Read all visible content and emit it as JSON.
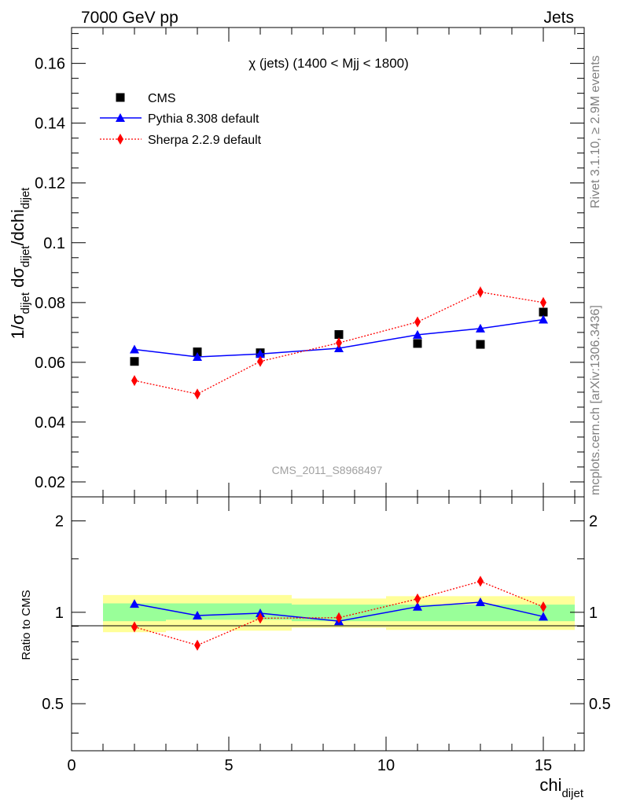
{
  "header": {
    "left": "7000 GeV pp",
    "right": "Jets"
  },
  "side_labels": {
    "top": "Rivet 3.1.10, ≥ 2.9M events",
    "bottom": "mcplots.cern.ch [arXiv:1306.3436]"
  },
  "watermark": "CMS_2011_S8968497",
  "chart_data": [
    {
      "type": "scatter",
      "title": "χ (jets) (1400 < Mjj < 1800)",
      "ylabel": "1/σdijet dσdijet/dchidijet",
      "ylabel_parts": [
        "1/σ",
        "dijet",
        " dσ",
        "dijet",
        "/dchi",
        "dijet"
      ],
      "xlim": [
        0,
        16.3
      ],
      "ylim": [
        0.015,
        0.172
      ],
      "yticks": [
        "0.02",
        "0.04",
        "0.06",
        "0.08",
        "0.1",
        "0.12",
        "0.14",
        "0.16"
      ],
      "yticks_values": [
        0.02,
        0.04,
        0.06,
        0.08,
        0.1,
        0.12,
        0.14,
        0.16
      ],
      "legend": {
        "placement": "top-left"
      },
      "series": [
        {
          "name": "CMS",
          "marker": "square",
          "color": "#000000",
          "x": [
            2,
            4,
            6,
            8.5,
            11,
            13,
            15
          ],
          "y": [
            0.0603,
            0.0635,
            0.0632,
            0.0693,
            0.0663,
            0.066,
            0.0768
          ]
        },
        {
          "name": "Pythia 8.308 default",
          "marker": "triangle",
          "color": "#0000ff",
          "line": "solid",
          "x": [
            2,
            4,
            6,
            8.5,
            11,
            13,
            15
          ],
          "y": [
            0.0643,
            0.0618,
            0.0628,
            0.0647,
            0.0692,
            0.0713,
            0.0743
          ],
          "err": [
            0.0006,
            0.0006,
            0.0006,
            0.0006,
            0.0009,
            0.001,
            0.001
          ]
        },
        {
          "name": "Sherpa 2.2.9 default",
          "marker": "diamond",
          "color": "#ff0000",
          "line": "dotted",
          "x": [
            2,
            4,
            6,
            8.5,
            11,
            13,
            15
          ],
          "y": [
            0.0539,
            0.0494,
            0.0603,
            0.0665,
            0.0735,
            0.0835,
            0.08
          ],
          "err": [
            0.0012,
            0.0012,
            0.0012,
            0.0013,
            0.0016,
            0.0018,
            0.0017
          ]
        }
      ]
    },
    {
      "type": "scatter",
      "ylabel": "Ratio to CMS",
      "xlabel": "chidijet",
      "xlabel_parts": [
        "chi",
        "dijet"
      ],
      "xlim": [
        0,
        16.3
      ],
      "ylim_log": [
        0.35,
        2.4
      ],
      "yticks": [
        "0.5",
        "1",
        "2"
      ],
      "yticks_values": [
        0.5,
        1,
        2
      ],
      "xticks": [
        "0",
        "5",
        "10",
        "15"
      ],
      "xticks_values": [
        0,
        5,
        10,
        15
      ],
      "bands": {
        "edges": [
          1,
          3,
          7,
          10,
          16
        ],
        "green": [
          [
            0.935,
            1.07
          ],
          [
            0.945,
            1.07
          ],
          [
            0.935,
            1.06
          ],
          [
            0.935,
            1.06
          ]
        ],
        "yellow": [
          [
            0.86,
            1.14
          ],
          [
            0.87,
            1.14
          ],
          [
            0.89,
            1.11
          ],
          [
            0.875,
            1.13
          ]
        ],
        "yellow_color": "#ffff99",
        "green_color": "#99ff99"
      },
      "series": [
        {
          "name": "Pythia 8.308 default",
          "color": "#0000ff",
          "marker": "triangle",
          "line": "solid",
          "x": [
            2,
            4,
            6,
            8.5,
            11,
            13,
            15
          ],
          "y": [
            1.066,
            0.976,
            0.993,
            0.935,
            1.043,
            1.08,
            0.968
          ]
        },
        {
          "name": "Sherpa 2.2.9 default",
          "color": "#ff0000",
          "marker": "diamond",
          "line": "dotted",
          "x": [
            2,
            4,
            6,
            8.5,
            11,
            13,
            15
          ],
          "y": [
            0.895,
            0.779,
            0.956,
            0.96,
            1.107,
            1.265,
            1.042
          ]
        }
      ]
    }
  ]
}
